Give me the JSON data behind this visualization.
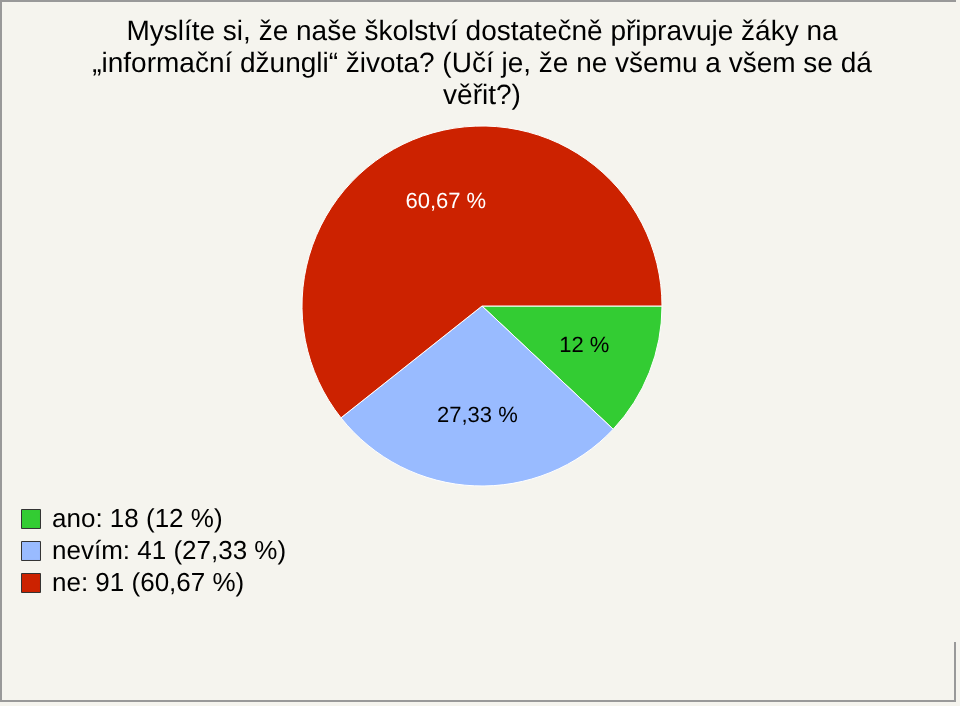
{
  "chart_data": {
    "type": "pie",
    "title": "Myslíte si, že naše školství dostatečně připravuje žáky na „informační džungli“ života? (Učí je, že ne všemu a všem se dá věřit?)",
    "categories": [
      "ano: 18 (12 %)",
      "nevím: 41 (27,33 %)",
      "ne: 91 (60,67 %)"
    ],
    "values": [
      12,
      27.33,
      60.67
    ],
    "colors": [
      "#33cc33",
      "#99bbff",
      "#cc2200"
    ],
    "value_labels": [
      "12 %",
      "27,33 %",
      "60,67 %"
    ],
    "legend": "bottom left"
  }
}
